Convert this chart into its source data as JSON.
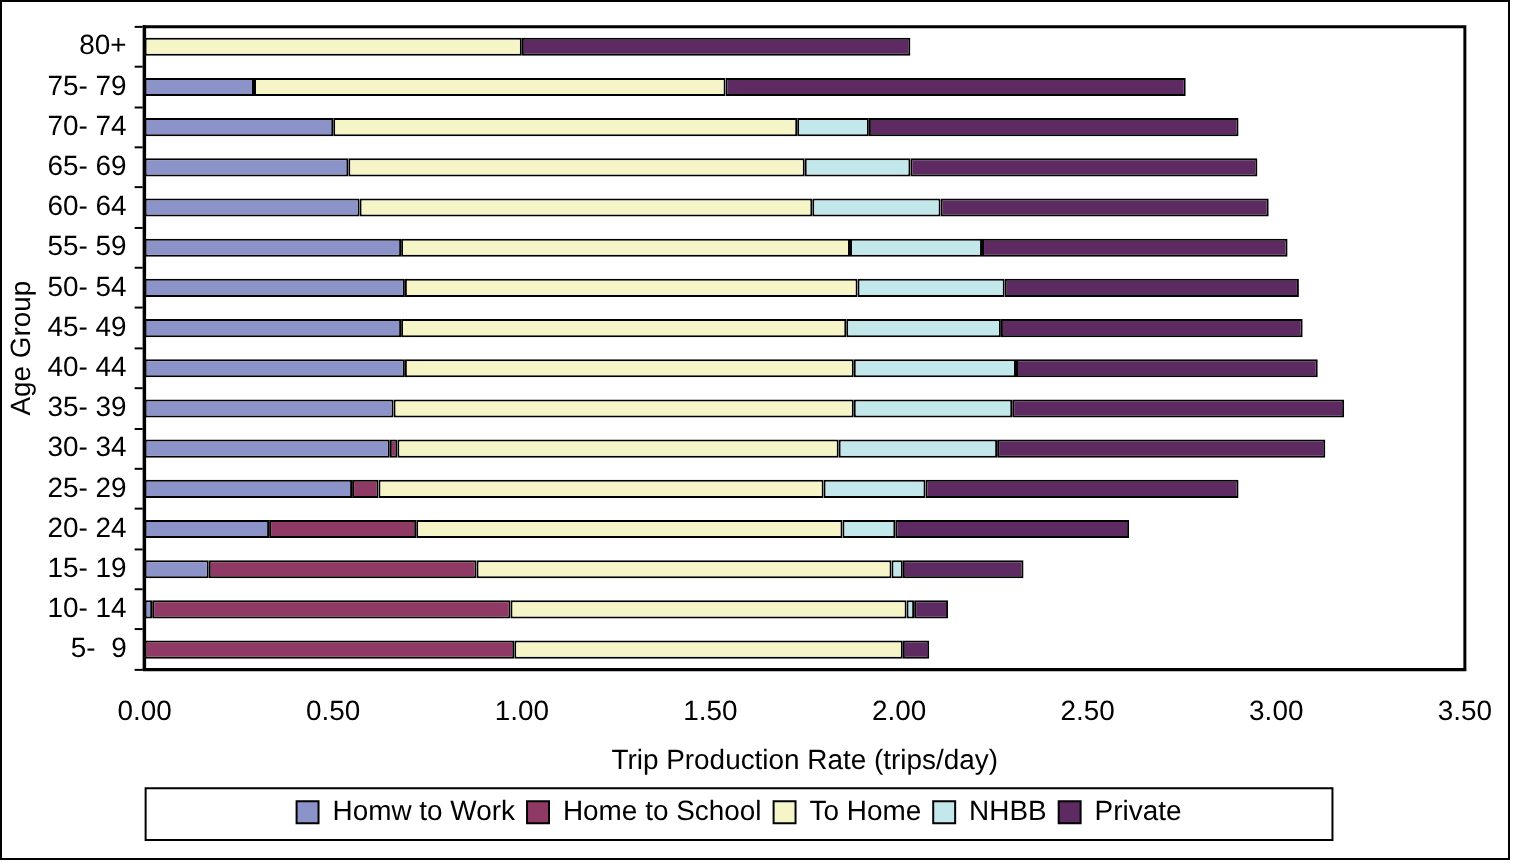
{
  "chart_data": {
    "type": "bar",
    "orientation": "horizontal",
    "stacked": true,
    "xlabel": "Trip Production Rate (trips/day)",
    "ylabel": "Age Group",
    "categories": [
      "80+",
      "75- 79",
      "70- 74",
      "65- 69",
      "60- 64",
      "55- 59",
      "50- 54",
      "45- 49",
      "40- 44",
      "35- 39",
      "30- 34",
      "25- 29",
      "20- 24",
      "15- 19",
      "10- 14",
      "5-  9"
    ],
    "series": [
      {
        "name": "Homw to Work",
        "color": "#8b93c8",
        "values": [
          0,
          0.29,
          0.5,
          0.54,
          0.57,
          0.68,
          0.69,
          0.68,
          0.69,
          0.66,
          0.65,
          0.55,
          0.33,
          0.17,
          0.02,
          0
        ]
      },
      {
        "name": "Home to School",
        "color": "#8f3a64",
        "values": [
          0,
          0,
          0,
          0,
          0,
          0,
          0,
          0,
          0,
          0,
          0.02,
          0.07,
          0.39,
          0.71,
          0.95,
          0.98
        ]
      },
      {
        "name": "To Home",
        "color": "#f5f5c8",
        "values": [
          1.0,
          1.25,
          1.23,
          1.21,
          1.2,
          1.19,
          1.2,
          1.18,
          1.19,
          1.22,
          1.17,
          1.18,
          1.13,
          1.1,
          1.05,
          1.03
        ]
      },
      {
        "name": "NHBB",
        "color": "#c3e8ec",
        "values": [
          0,
          0,
          0.19,
          0.28,
          0.34,
          0.35,
          0.39,
          0.41,
          0.43,
          0.42,
          0.42,
          0.27,
          0.14,
          0.03,
          0.02,
          0
        ]
      },
      {
        "name": "Private",
        "color": "#5e2a62",
        "values": [
          1.03,
          1.22,
          0.98,
          0.92,
          0.87,
          0.81,
          0.78,
          0.8,
          0.8,
          0.88,
          0.87,
          0.83,
          0.62,
          0.32,
          0.09,
          0.07
        ]
      }
    ],
    "xlim": [
      0,
      3.5
    ],
    "xticks": [
      {
        "value": 0,
        "label": "0.00"
      },
      {
        "value": 0.5,
        "label": "0.50"
      },
      {
        "value": 1,
        "label": "1.00"
      },
      {
        "value": 1.5,
        "label": "1.50"
      },
      {
        "value": 2,
        "label": "2.00"
      },
      {
        "value": 2.5,
        "label": "2.50"
      },
      {
        "value": 3,
        "label": "3.00"
      },
      {
        "value": 3.5,
        "label": "3.50"
      }
    ],
    "grid": false,
    "legend": "bottom"
  }
}
